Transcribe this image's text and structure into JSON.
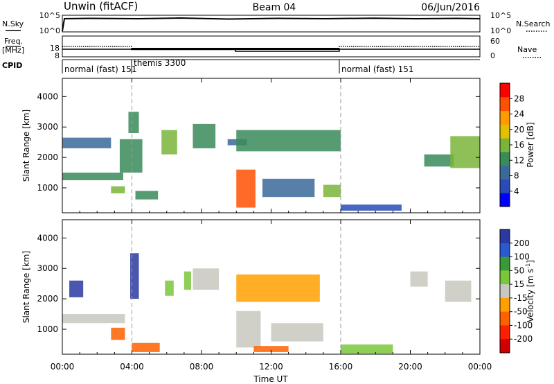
{
  "header": {
    "station": "Unwin (fitACF)",
    "beam": "Beam 04",
    "date": "06/Jun/2016"
  },
  "panels": {
    "nsky": {
      "left_label": "N.Sky",
      "left_ticks": [
        "10^5",
        "10^0"
      ],
      "right_ticks": [
        "10^5",
        "10^0"
      ],
      "right_label": "N.Search"
    },
    "freq": {
      "left_label_1": "Freq.",
      "left_label_2": "[MHz]",
      "left_ticks": [
        "18",
        "8"
      ],
      "right_ticks": [
        "60",
        "0"
      ],
      "right_label": "Nave"
    },
    "cpid": {
      "label": "CPID",
      "modes": [
        "normal (fast) 151",
        "themis 3300",
        "normal (fast) 151"
      ]
    }
  },
  "axes": {
    "time_ticks": [
      "00:00",
      "04:00",
      "08:00",
      "12:00",
      "16:00",
      "20:00",
      "00:00"
    ],
    "xlabel": "Time UT",
    "ylabel": "Slant Range [km]",
    "range_ticks": [
      "4000",
      "3000",
      "2000",
      "1000"
    ]
  },
  "colorbars": {
    "power": {
      "label": "Power [dB]",
      "ticks": [
        "28",
        "24",
        "20",
        "16",
        "12",
        "8",
        "4"
      ],
      "colors": [
        "#0000ff",
        "#2a4bb8",
        "#3a6a9a",
        "#3a8a5a",
        "#7ab53a",
        "#e0c000",
        "#ff9a00",
        "#ff5000",
        "#ff0000"
      ]
    },
    "velocity": {
      "label": "Velocity [m s",
      "label_sup": "-1",
      "label_close": "]",
      "ticks": [
        "200",
        "100",
        "50",
        "15",
        "-15",
        "-50",
        "-100",
        "-200"
      ],
      "colors": [
        "#2a3aa0",
        "#2a5ad0",
        "#3a9a3a",
        "#7ac83a",
        "#c8c8c0",
        "#ffa000",
        "#ff6000",
        "#ff2000",
        "#d00000"
      ]
    }
  },
  "chart_data": [
    {
      "type": "heatmap",
      "name": "Power",
      "x_unit": "hours UT",
      "xlim": [
        0,
        24
      ],
      "ylim": [
        180,
        4600
      ],
      "cbar_range": [
        0,
        32
      ],
      "vertical_markers": [
        4,
        16
      ],
      "regions": [
        {
          "x": [
            0.0,
            2.8
          ],
          "y": [
            2300,
            2650
          ],
          "v": 9
        },
        {
          "x": [
            0.0,
            3.5
          ],
          "y": [
            1250,
            1500
          ],
          "v": 11
        },
        {
          "x": [
            2.8,
            3.6
          ],
          "y": [
            820,
            1050
          ],
          "v": 15
        },
        {
          "x": [
            3.3,
            4.6
          ],
          "y": [
            1500,
            2600
          ],
          "v": 12
        },
        {
          "x": [
            3.8,
            4.4
          ],
          "y": [
            2800,
            3500
          ],
          "v": 13
        },
        {
          "x": [
            4.2,
            5.5
          ],
          "y": [
            620,
            900
          ],
          "v": 13
        },
        {
          "x": [
            5.7,
            6.6
          ],
          "y": [
            2100,
            2900
          ],
          "v": 17
        },
        {
          "x": [
            7.5,
            8.8
          ],
          "y": [
            2300,
            3100
          ],
          "v": 11
        },
        {
          "x": [
            9.5,
            10.6
          ],
          "y": [
            2400,
            2600
          ],
          "v": 9
        },
        {
          "x": [
            10.0,
            16.0
          ],
          "y": [
            2200,
            2900
          ],
          "v": 13
        },
        {
          "x": [
            10.0,
            11.1
          ],
          "y": [
            350,
            1600
          ],
          "v": 26
        },
        {
          "x": [
            11.5,
            14.5
          ],
          "y": [
            700,
            1300
          ],
          "v": 10
        },
        {
          "x": [
            15.0,
            16.0
          ],
          "y": [
            700,
            1100
          ],
          "v": 15
        },
        {
          "x": [
            16.0,
            19.5
          ],
          "y": [
            250,
            450
          ],
          "v": 7
        },
        {
          "x": [
            20.8,
            22.5
          ],
          "y": [
            1700,
            2100
          ],
          "v": 11
        },
        {
          "x": [
            22.3,
            24.0
          ],
          "y": [
            1650,
            2700
          ],
          "v": 15
        }
      ]
    },
    {
      "type": "heatmap",
      "name": "Velocity",
      "x_unit": "hours UT",
      "xlim": [
        0,
        24
      ],
      "ylim": [
        180,
        4600
      ],
      "cbar_range": [
        -200,
        200
      ],
      "vertical_markers": [
        4,
        16
      ],
      "regions": [
        {
          "x": [
            0.0,
            3.6
          ],
          "y": [
            1200,
            1500
          ],
          "v": 0
        },
        {
          "x": [
            0.4,
            1.2
          ],
          "y": [
            2050,
            2600
          ],
          "v": -200
        },
        {
          "x": [
            2.8,
            3.6
          ],
          "y": [
            650,
            1050
          ],
          "v": -80
        },
        {
          "x": [
            3.9,
            4.4
          ],
          "y": [
            2000,
            3500
          ],
          "v": -200
        },
        {
          "x": [
            4.0,
            5.6
          ],
          "y": [
            250,
            550
          ],
          "v": -100
        },
        {
          "x": [
            5.9,
            6.4
          ],
          "y": [
            2100,
            2600
          ],
          "v": 60
        },
        {
          "x": [
            7.0,
            7.4
          ],
          "y": [
            2300,
            2900
          ],
          "v": 60
        },
        {
          "x": [
            7.5,
            9.0
          ],
          "y": [
            2300,
            3000
          ],
          "v": 0
        },
        {
          "x": [
            10.0,
            14.8
          ],
          "y": [
            1900,
            2800
          ],
          "v": -30
        },
        {
          "x": [
            10.0,
            11.4
          ],
          "y": [
            400,
            1600
          ],
          "v": 0
        },
        {
          "x": [
            11.0,
            13.0
          ],
          "y": [
            250,
            450
          ],
          "v": -100
        },
        {
          "x": [
            12.0,
            15.0
          ],
          "y": [
            600,
            1200
          ],
          "v": 0
        },
        {
          "x": [
            16.0,
            19.0
          ],
          "y": [
            200,
            500
          ],
          "v": 40
        },
        {
          "x": [
            20.0,
            21.0
          ],
          "y": [
            2400,
            2900
          ],
          "v": 0
        },
        {
          "x": [
            22.0,
            23.5
          ],
          "y": [
            1900,
            2600
          ],
          "v": 0
        }
      ]
    }
  ]
}
